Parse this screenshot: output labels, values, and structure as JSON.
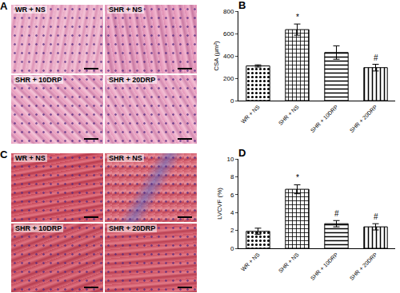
{
  "images": [
    {
      "label": "A",
      "tiles": [
        "WR + NS",
        "SHR + NS",
        "SHR + 10DRP",
        "SHR + 20DRP"
      ]
    },
    {
      "label": "C",
      "tiles": [
        "WR + NS",
        "SHR + NS",
        "SHR + 10DRP",
        "SHR + 20DRP"
      ]
    }
  ],
  "chart_data": [
    {
      "type": "bar",
      "title": "B",
      "categories": [
        "WR + NS",
        "SHR + NS",
        "SHR + 10DRP",
        "SHR + 20DRP"
      ],
      "values": [
        310,
        635,
        430,
        295
      ],
      "errors": [
        10,
        50,
        60,
        30
      ],
      "y_label": "CSA (μm²)",
      "ylim": [
        0,
        800
      ],
      "yticks": [
        0,
        200,
        400,
        600,
        800
      ],
      "color": "#000000",
      "annotations": [
        {
          "category": "SHR + NS",
          "text": "*"
        },
        {
          "category": "SHR + 20DRP",
          "text": "#"
        }
      ]
    },
    {
      "type": "bar",
      "title": "D",
      "categories": [
        "WR + NS",
        "SHR + NS",
        "SHR + 10DRP",
        "SHR + 20DRP"
      ],
      "values": [
        1.9,
        6.6,
        2.75,
        2.4
      ],
      "errors": [
        0.35,
        0.5,
        0.35,
        0.35
      ],
      "y_label": "LVCVF (%)",
      "ylim": [
        0,
        10
      ],
      "yticks": [
        0,
        2,
        4,
        6,
        8,
        10
      ],
      "color": "#000000",
      "annotations": [
        {
          "category": "SHR + NS",
          "text": "*"
        },
        {
          "category": "SHR + 10DRP",
          "text": "#"
        },
        {
          "category": "SHR + 20DRP",
          "text": "#"
        }
      ]
    }
  ]
}
